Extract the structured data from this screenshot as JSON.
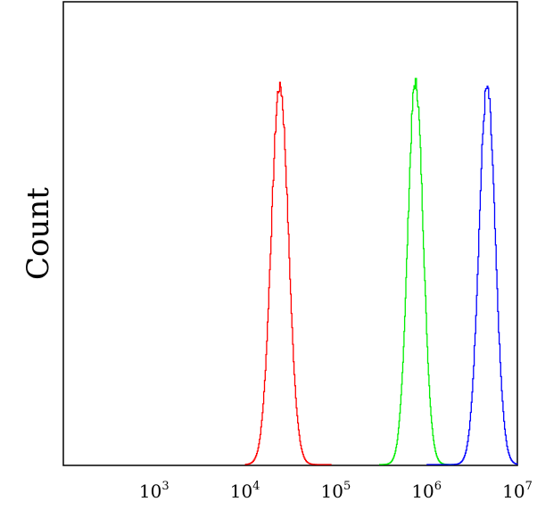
{
  "chart_data": {
    "type": "line",
    "title": "",
    "xlabel": "",
    "ylabel": "Count",
    "x_scale": "log",
    "xlim": [
      100,
      10000000
    ],
    "ylim": [
      0,
      1
    ],
    "grid": false,
    "legend": "none",
    "ticks": [
      {
        "base": "10",
        "exp": "3",
        "value": 1000
      },
      {
        "base": "10",
        "exp": "4",
        "value": 10000
      },
      {
        "base": "10",
        "exp": "5",
        "value": 100000
      },
      {
        "base": "10",
        "exp": "6",
        "value": 1000000
      },
      {
        "base": "10",
        "exp": "7",
        "value": 10000000
      }
    ],
    "series": [
      {
        "color": "#ff0000",
        "peak_x": 24000,
        "peak_y": 0.99,
        "x_from": 10000,
        "x_to": 90000,
        "sigma_log10": 0.095
      },
      {
        "color": "#00ee00",
        "peak_x": 750000,
        "peak_y": 1.0,
        "x_from": 300000,
        "x_to": 2000000,
        "sigma_log10": 0.085
      },
      {
        "color": "#0000ff",
        "peak_x": 4600000,
        "peak_y": 0.98,
        "x_from": 1000000,
        "x_to": 10000000,
        "sigma_log10": 0.09
      }
    ]
  }
}
